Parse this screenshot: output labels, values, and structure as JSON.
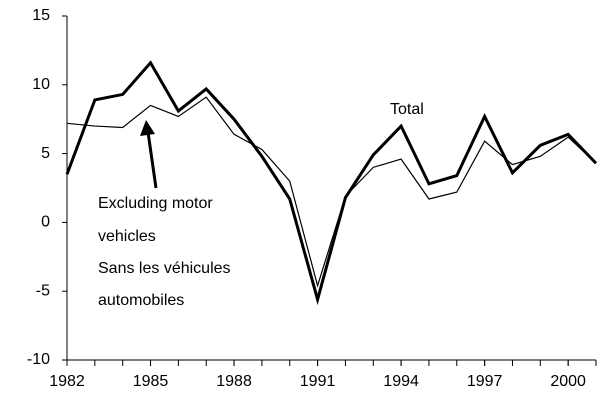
{
  "chart_data": {
    "type": "line",
    "x": [
      1982,
      1983,
      1984,
      1985,
      1986,
      1987,
      1988,
      1989,
      1990,
      1991,
      1992,
      1993,
      1994,
      1995,
      1996,
      1997,
      1998,
      1999,
      2000,
      2001
    ],
    "series": [
      {
        "name": "Total",
        "color": "#000000",
        "width": 3,
        "values": [
          3.5,
          8.9,
          9.3,
          11.6,
          8.1,
          9.7,
          7.5,
          4.8,
          1.7,
          -5.6,
          1.8,
          4.9,
          7.0,
          2.8,
          3.4,
          7.7,
          3.6,
          5.6,
          6.4,
          4.3
        ]
      },
      {
        "name": "Excluding motor vehicles",
        "color": "#000000",
        "width": 1.2,
        "values": [
          7.2,
          7.0,
          6.9,
          8.5,
          7.7,
          9.1,
          6.4,
          5.3,
          3.0,
          -4.6,
          1.9,
          4.0,
          4.6,
          1.7,
          2.2,
          5.9,
          4.2,
          4.8,
          6.2,
          4.3
        ]
      }
    ],
    "annotations": [
      "Total",
      "Excluding motor",
      "vehicles",
      "Sans les véhicules",
      "automobiles"
    ],
    "xlim": [
      1982,
      2001
    ],
    "xticks": [
      1982,
      1985,
      1988,
      1991,
      1994,
      1997,
      2000
    ],
    "ylim": [
      -10,
      15
    ],
    "yticks": [
      -10,
      -5,
      0,
      5,
      10,
      15
    ],
    "grid": false
  }
}
